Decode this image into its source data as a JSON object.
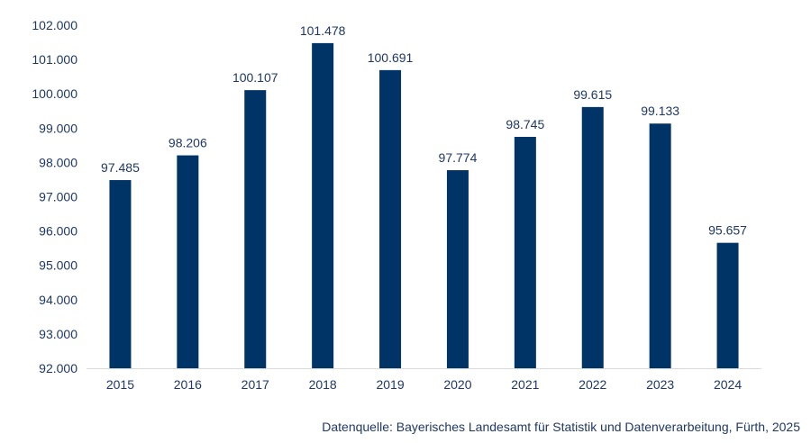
{
  "chart_data": {
    "type": "bar",
    "title": "",
    "xlabel": "",
    "ylabel": "",
    "categories": [
      "2015",
      "2016",
      "2017",
      "2018",
      "2019",
      "2020",
      "2021",
      "2022",
      "2023",
      "2024"
    ],
    "values": [
      97485,
      98206,
      100107,
      101478,
      100691,
      97774,
      98745,
      99615,
      99133,
      95657
    ],
    "data_labels": [
      "97.485",
      "98.206",
      "100.107",
      "101.478",
      "100.691",
      "97.774",
      "98.745",
      "99.615",
      "99.133",
      "95.657"
    ],
    "ylim": [
      92000,
      102000
    ],
    "yticks": [
      92000,
      93000,
      94000,
      95000,
      96000,
      97000,
      98000,
      99000,
      100000,
      101000,
      102000
    ],
    "ytick_labels": [
      "92.000",
      "93.000",
      "94.000",
      "95.000",
      "96.000",
      "97.000",
      "98.000",
      "99.000",
      "100.000",
      "101.000",
      "102.000"
    ],
    "grid": false,
    "legend": "none",
    "bar_color": "#003366",
    "text_color": "#1f3864",
    "axis_color": "#d9d9d9"
  },
  "source_note": "Datenquelle: Bayerisches Landesamt für Statistik und Datenverarbeitung, Fürth, 2025"
}
